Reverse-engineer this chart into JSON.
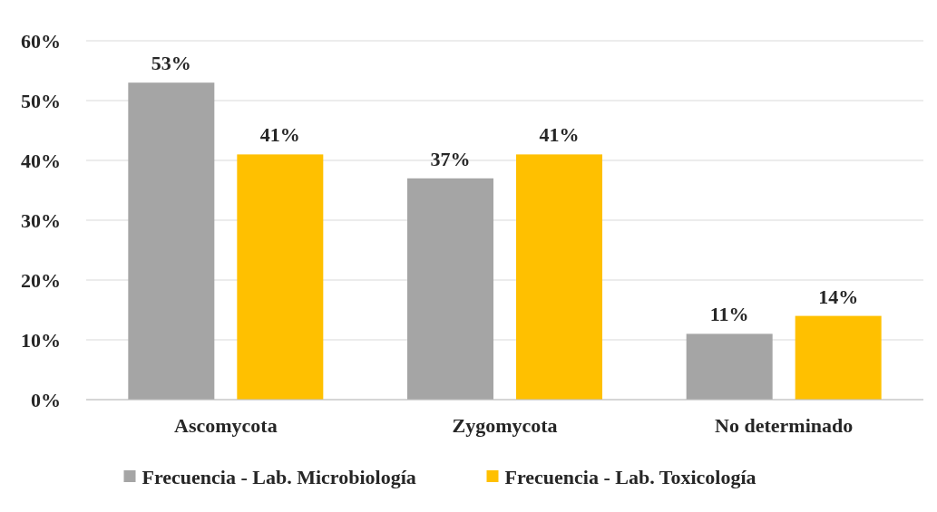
{
  "chart_data": {
    "type": "bar",
    "categories": [
      "Ascomycota",
      "Zygomycota",
      "No determinado"
    ],
    "series": [
      {
        "name": "Frecuencia - Lab. Microbiología",
        "color": "#a5a5a5",
        "values": [
          53,
          37,
          11
        ],
        "value_labels": [
          "53%",
          "37%",
          "11%"
        ]
      },
      {
        "name": "Frecuencia - Lab. Toxicología",
        "color": "#ffc000",
        "values": [
          41,
          41,
          14
        ],
        "value_labels": [
          "41%",
          "41%",
          "14%"
        ]
      }
    ],
    "ylim": [
      0,
      60
    ],
    "yticks": [
      {
        "value": 0,
        "label": "0%"
      },
      {
        "value": 10,
        "label": "10%"
      },
      {
        "value": 20,
        "label": "20%"
      },
      {
        "value": 30,
        "label": "30%"
      },
      {
        "value": 40,
        "label": "40%"
      },
      {
        "value": 50,
        "label": "50%"
      },
      {
        "value": 60,
        "label": "60%"
      }
    ],
    "grid": "y",
    "legend": "bottom"
  }
}
